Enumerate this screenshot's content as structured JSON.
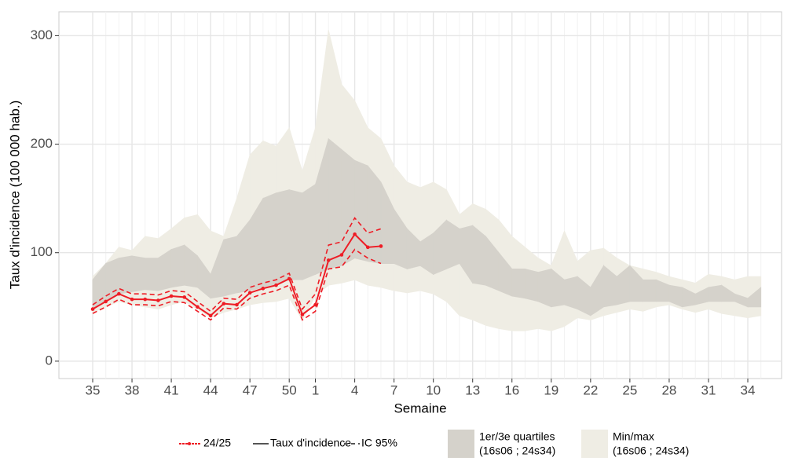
{
  "chart_data": {
    "type": "line",
    "y_label": "Taux d'incidence (100 000 hab.)",
    "x_label": "Semaine",
    "categories": [
      "35",
      null,
      null,
      "38",
      null,
      null,
      "41",
      null,
      null,
      "44",
      null,
      null,
      "47",
      null,
      null,
      "50",
      null,
      "1",
      null,
      null,
      "4",
      null,
      null,
      "7",
      null,
      null,
      "10",
      null,
      null,
      "13",
      null,
      null,
      "16",
      null,
      null,
      "19",
      null,
      null,
      "22",
      null,
      null,
      "25",
      null,
      null,
      "28",
      null,
      null,
      "31",
      null,
      null,
      "34",
      null
    ],
    "ylim": [
      -16,
      322
    ],
    "yticks": [
      0,
      100,
      200,
      300
    ],
    "grid": true,
    "bands": [
      {
        "name": "Min/max",
        "period": "(16s06 ; 24s34)",
        "color": "#efede4",
        "high": [
          78,
          90,
          105,
          102,
          115,
          113,
          122,
          132,
          135,
          120,
          115,
          150,
          190,
          203,
          198,
          215,
          175,
          215,
          305,
          255,
          240,
          215,
          205,
          180,
          165,
          160,
          165,
          158,
          135,
          145,
          140,
          130,
          115,
          105,
          95,
          88,
          120,
          92,
          102,
          104,
          95,
          88,
          85,
          82,
          78,
          75,
          72,
          80,
          78,
          75,
          78,
          78
        ],
        "low": [
          45,
          50,
          55,
          52,
          50,
          48,
          52,
          55,
          48,
          40,
          45,
          48,
          52,
          54,
          55,
          58,
          38,
          60,
          70,
          72,
          75,
          70,
          68,
          65,
          63,
          65,
          62,
          55,
          42,
          38,
          33,
          30,
          28,
          28,
          30,
          28,
          32,
          40,
          38,
          42,
          45,
          48,
          46,
          50,
          52,
          48,
          45,
          48,
          44,
          42,
          40,
          42
        ]
      },
      {
        "name": "1er/3e quartiles",
        "period": "(16s06 ; 24s34)",
        "color": "#d5d2cb",
        "high": [
          75,
          90,
          95,
          97,
          95,
          95,
          103,
          107,
          97,
          80,
          112,
          115,
          130,
          150,
          155,
          158,
          155,
          163,
          205,
          195,
          185,
          180,
          165,
          140,
          122,
          110,
          118,
          130,
          122,
          125,
          115,
          100,
          85,
          85,
          82,
          85,
          75,
          78,
          68,
          88,
          78,
          88,
          75,
          75,
          70,
          68,
          62,
          68,
          70,
          62,
          58,
          68
        ],
        "low": [
          48,
          55,
          62,
          64,
          66,
          65,
          68,
          70,
          68,
          58,
          60,
          63,
          65,
          68,
          70,
          75,
          75,
          80,
          85,
          88,
          95,
          92,
          90,
          90,
          85,
          88,
          80,
          85,
          90,
          72,
          70,
          65,
          60,
          58,
          55,
          50,
          52,
          48,
          42,
          50,
          52,
          55,
          55,
          55,
          55,
          50,
          52,
          55,
          55,
          55,
          50,
          50
        ]
      }
    ],
    "series": [
      {
        "name": "24/25",
        "color": "#ee1c25",
        "values": [
          48,
          55,
          62,
          57,
          57,
          56,
          60,
          59,
          50,
          42,
          53,
          52,
          63,
          67,
          70,
          76,
          43,
          52,
          93,
          98,
          117,
          105,
          106,
          null,
          null,
          null,
          null,
          null,
          null,
          null,
          null,
          null,
          null,
          null,
          null,
          null,
          null,
          null,
          null,
          null,
          null,
          null,
          null,
          null,
          null,
          null,
          null,
          null,
          null,
          null,
          null,
          null
        ],
        "ci_low": [
          44,
          50,
          57,
          52,
          52,
          51,
          55,
          54,
          46,
          38,
          49,
          48,
          58,
          62,
          65,
          70,
          38,
          46,
          85,
          87,
          103,
          95,
          90,
          null,
          null,
          null,
          null,
          null,
          null,
          null,
          null,
          null,
          null,
          null,
          null,
          null,
          null,
          null,
          null,
          null,
          null,
          null,
          null,
          null,
          null,
          null,
          null,
          null,
          null,
          null,
          null,
          null
        ],
        "ci_high": [
          52,
          60,
          67,
          62,
          62,
          61,
          65,
          64,
          55,
          46,
          58,
          57,
          68,
          72,
          75,
          81,
          48,
          62,
          107,
          110,
          132,
          118,
          122,
          null,
          null,
          null,
          null,
          null,
          null,
          null,
          null,
          null,
          null,
          null,
          null,
          null,
          null,
          null,
          null,
          null,
          null,
          null,
          null,
          null,
          null,
          null,
          null,
          null,
          null,
          null,
          null,
          null
        ]
      }
    ],
    "legend_lines": [
      {
        "name": "Taux d'incidence",
        "color": "#555555",
        "style": "solid"
      },
      {
        "name": "IC 95%",
        "color": "#555555",
        "style": "dashed"
      }
    ]
  }
}
